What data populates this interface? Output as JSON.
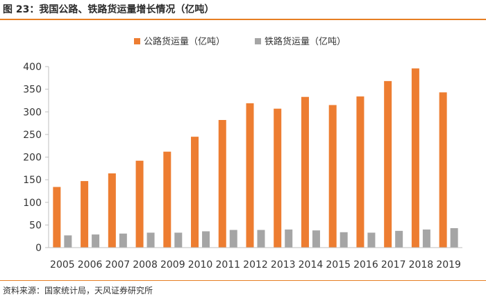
{
  "figure": {
    "title": "图 23：我国公路、铁路货运量增长情况（亿吨）",
    "source": "资料来源：国家统计局，天风证券研究所"
  },
  "colors": {
    "accent": "#e67e22",
    "highway": "#ed7d31",
    "railway": "#a5a5a5"
  },
  "chart_data": {
    "type": "bar",
    "title": "",
    "xlabel": "",
    "ylabel": "",
    "ylim": [
      0,
      400
    ],
    "yticks": [
      0,
      50,
      100,
      150,
      200,
      250,
      300,
      350,
      400
    ],
    "legend_position": "top-center",
    "grid": false,
    "categories": [
      "2005",
      "2006",
      "2007",
      "2008",
      "2009",
      "2010",
      "2011",
      "2012",
      "2013",
      "2014",
      "2015",
      "2016",
      "2017",
      "2018",
      "2019"
    ],
    "series": [
      {
        "name": "公路货运量（亿吨）",
        "color": "#ed7d31",
        "values": [
          134,
          147,
          164,
          192,
          212,
          245,
          282,
          319,
          307,
          333,
          315,
          334,
          368,
          396,
          343
        ]
      },
      {
        "name": "铁路货运量（亿吨）",
        "color": "#a5a5a5",
        "values": [
          27,
          29,
          31,
          33,
          33,
          36,
          39,
          39,
          40,
          38,
          34,
          33,
          37,
          40,
          43
        ]
      }
    ]
  }
}
